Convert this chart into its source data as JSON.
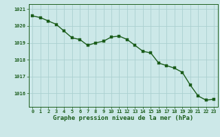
{
  "x": [
    0,
    1,
    2,
    3,
    4,
    5,
    6,
    7,
    8,
    9,
    10,
    11,
    12,
    13,
    14,
    15,
    16,
    17,
    18,
    19,
    20,
    21,
    22,
    23
  ],
  "y": [
    1020.6,
    1020.5,
    1020.3,
    1020.1,
    1019.7,
    1019.3,
    1019.2,
    1018.85,
    1019.0,
    1019.1,
    1019.35,
    1019.4,
    1019.2,
    1018.85,
    1018.5,
    1018.4,
    1017.8,
    1017.65,
    1017.5,
    1017.25,
    1016.5,
    1015.85,
    1015.6,
    1015.65
  ],
  "line_color": "#1a5c1a",
  "marker_color": "#1a5c1a",
  "bg_color": "#cce8e8",
  "grid_color": "#aad0d0",
  "axis_color": "#1a5c1a",
  "xlabel": "Graphe pression niveau de la mer (hPa)",
  "ylim_min": 1015.2,
  "ylim_max": 1021.3,
  "yticks": [
    1016,
    1017,
    1018,
    1019,
    1020,
    1021
  ],
  "xticks": [
    0,
    1,
    2,
    3,
    4,
    5,
    6,
    7,
    8,
    9,
    10,
    11,
    12,
    13,
    14,
    15,
    16,
    17,
    18,
    19,
    20,
    21,
    22,
    23
  ],
  "marker_size": 2.2,
  "line_width": 1.0,
  "tick_fontsize": 5.0,
  "label_fontsize": 6.5
}
